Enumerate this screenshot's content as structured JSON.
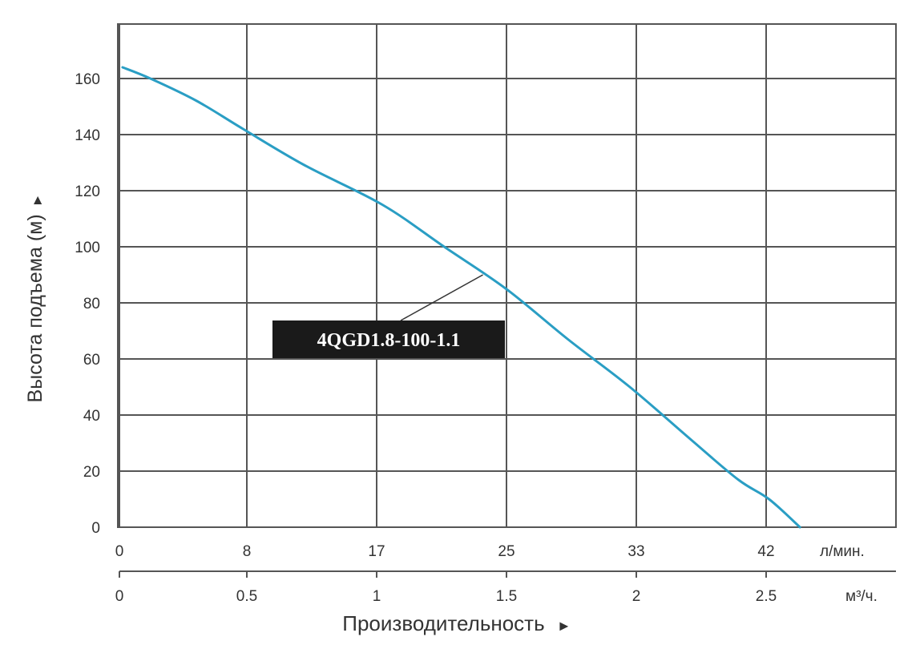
{
  "chart_data": {
    "type": "line",
    "title": "",
    "ylabel": "Высота подъема (м)",
    "ylabel_arrow": "►",
    "xlabel": "Производительность",
    "xlabel_arrow": "►",
    "ylim": [
      0,
      180
    ],
    "xlim": [
      0,
      50
    ],
    "grid": true,
    "y_ticks": [
      "0",
      "20",
      "40",
      "60",
      "80",
      "100",
      "120",
      "140",
      "160"
    ],
    "x_ticks": [
      "0",
      "8",
      "17",
      "25",
      "33",
      "42"
    ],
    "x_unit": "л/мин.",
    "x2_ticks": [
      "0",
      "0.5",
      "1",
      "1.5",
      "2",
      "2.5"
    ],
    "x2_unit": "м³/ч.",
    "series": [
      {
        "name": "4QGD1.8-100-1.1",
        "color": "#2a9ec4",
        "x": [
          0.2,
          2,
          5,
          8,
          12,
          17,
          21,
          25,
          29,
          33,
          37,
          40,
          42,
          44
        ],
        "y": [
          164,
          160,
          152,
          142,
          129,
          115,
          100,
          85,
          67,
          50,
          31,
          17,
          10,
          0
        ]
      }
    ],
    "annotation": {
      "text": "4QGD1.8-100-1.1",
      "points_to": {
        "x": 23.5,
        "y": 90
      },
      "bg_color": "#1a1a1a",
      "text_color": "#ffffff"
    }
  }
}
